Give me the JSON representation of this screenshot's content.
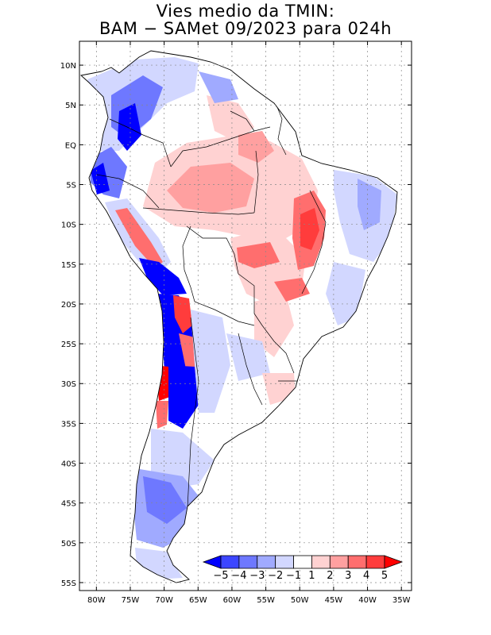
{
  "title_line1": "Vies medio da TMIN:",
  "title_line2": "BAM − SAMet 09/2023  para 024h",
  "lat_labels": [
    "10N",
    "5N",
    "EQ",
    "5S",
    "10S",
    "15S",
    "20S",
    "25S",
    "30S",
    "35S",
    "40S",
    "45S",
    "50S",
    "55S"
  ],
  "lat_values": [
    10,
    5,
    0,
    -5,
    -10,
    -15,
    -20,
    -25,
    -30,
    -35,
    -40,
    -45,
    -50,
    -55
  ],
  "lon_labels": [
    "80W",
    "75W",
    "70W",
    "65W",
    "60W",
    "55W",
    "50W",
    "45W",
    "40W",
    "35W"
  ],
  "lon_values": [
    -80,
    -75,
    -70,
    -65,
    -60,
    -55,
    -50,
    -45,
    -40,
    -35
  ],
  "extent": {
    "lon_min": -82.5,
    "lon_max": -33.5,
    "lat_min": -56,
    "lat_max": 13
  },
  "colorbar": {
    "labels": [
      "−5",
      "−4",
      "−3",
      "−2",
      "−1",
      "1",
      "2",
      "3",
      "4",
      "5"
    ],
    "colors": [
      "#0000ff",
      "#3c46ff",
      "#6e78ff",
      "#a0aaff",
      "#d2d7ff",
      "#ffffff",
      "#ffd2d2",
      "#ffa0a0",
      "#ff6e6e",
      "#ff3c3c",
      "#ff0000"
    ]
  },
  "colors": {
    "strong_blue": "#0000ff",
    "blue": "#6e78ff",
    "light_blue": "#d2d7ff",
    "light_red": "#ffd2d2",
    "red": "#ff6e6e",
    "strong_red": "#ff0000"
  }
}
